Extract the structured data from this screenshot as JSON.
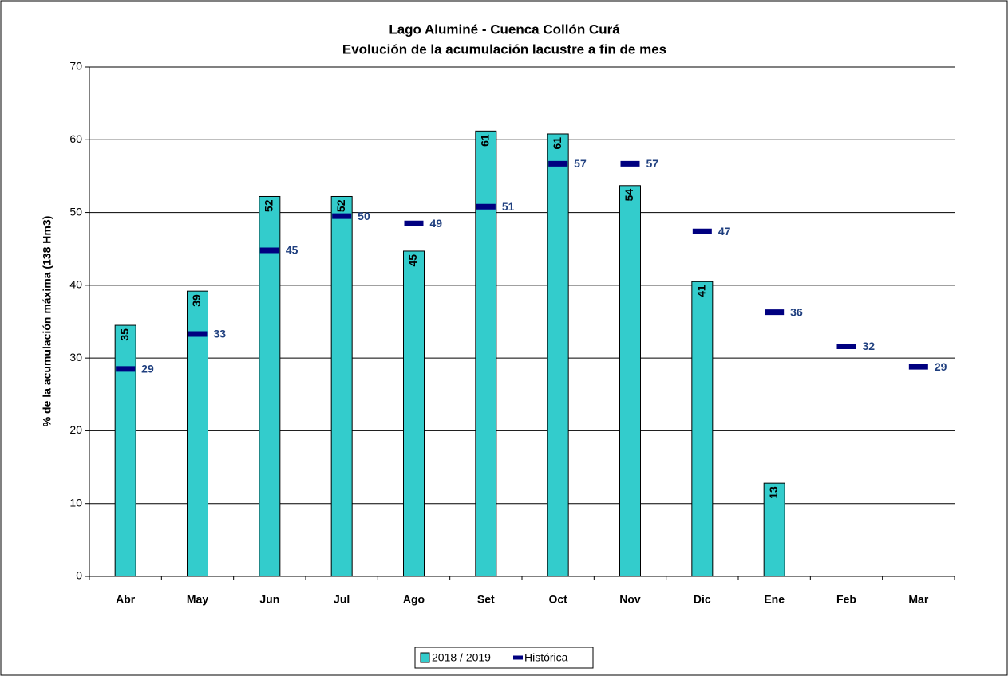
{
  "chart_data": {
    "type": "bar",
    "title": "Lago Aluminé - Cuenca Collón Curá",
    "subtitle": "Evolución de la acumulación lacustre a fin de mes",
    "y_label": "% de la acumulación máxima (138 Hm3)",
    "categories": [
      "Abr",
      "May",
      "Jun",
      "Jul",
      "Ago",
      "Set",
      "Oct",
      "Nov",
      "Dic",
      "Ene",
      "Feb",
      "Mar"
    ],
    "series": [
      {
        "name": "2018 / 2019",
        "type": "bar",
        "color": "#33cccc",
        "values": [
          34.5,
          39.2,
          52.2,
          52.2,
          44.7,
          61.2,
          60.8,
          53.7,
          40.5,
          12.8,
          null,
          null
        ],
        "value_labels": [
          "35",
          "39",
          "52",
          "52",
          "45",
          "61",
          "61",
          "54",
          "41",
          "13",
          null,
          null
        ]
      },
      {
        "name": "Histórica",
        "type": "marker",
        "color": "#000080",
        "values": [
          28.5,
          33.3,
          44.8,
          49.5,
          48.5,
          50.8,
          56.7,
          56.7,
          47.4,
          36.3,
          31.6,
          28.8
        ],
        "value_labels": [
          "29",
          "33",
          "45",
          "50",
          "49",
          "51",
          "57",
          "57",
          "47",
          "36",
          "32",
          "29"
        ]
      }
    ],
    "ylim": [
      0,
      70
    ],
    "yticks": [
      0,
      10,
      20,
      30,
      40,
      50,
      60,
      70
    ],
    "grid": true,
    "legend": "bottom"
  }
}
